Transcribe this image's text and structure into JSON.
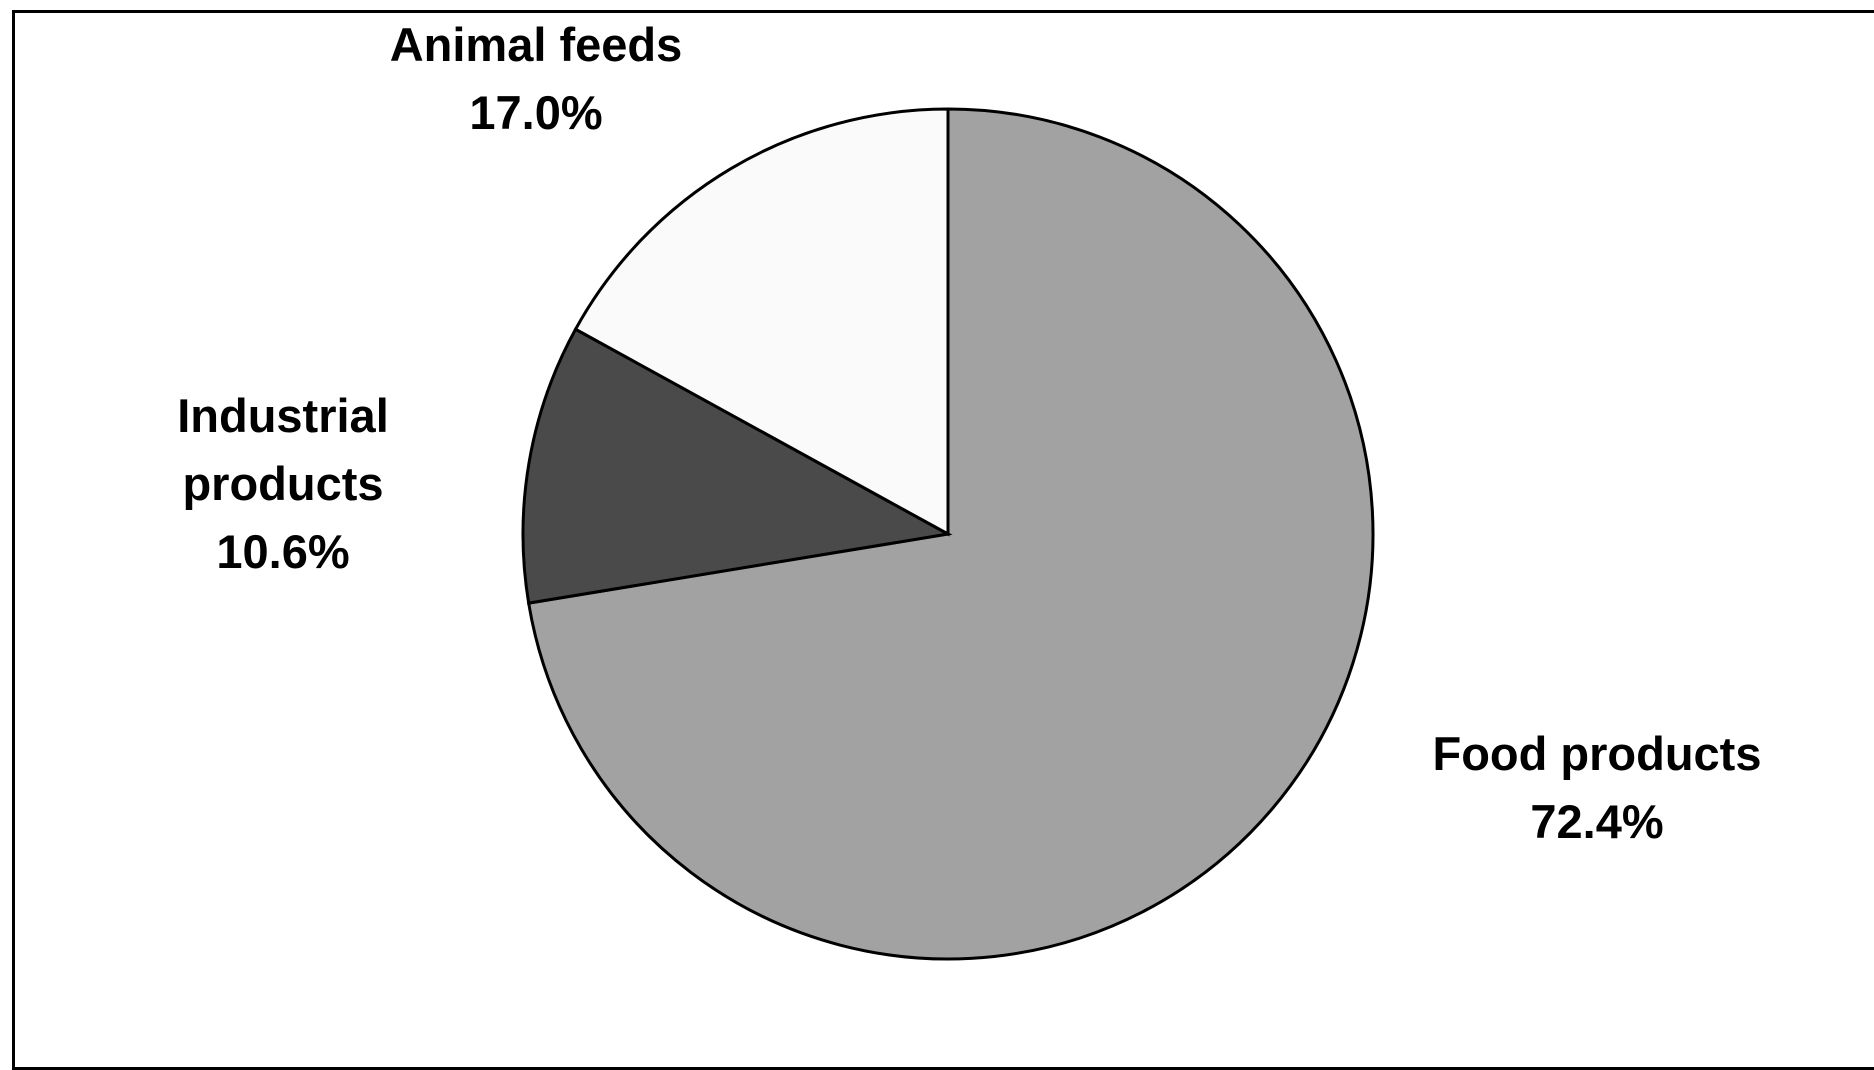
{
  "chart_data": {
    "type": "pie",
    "title": "",
    "slices": [
      {
        "label": [
          "Food products",
          "72.4%"
        ],
        "value": 72.4,
        "color": "#a2a2a2"
      },
      {
        "label": [
          "Industrial",
          "products",
          "10.6%"
        ],
        "value": 10.6,
        "color": "#4a4a4a"
      },
      {
        "label": [
          "Animal feeds",
          "17.0%"
        ],
        "value": 17.0,
        "color": "#fafafa"
      }
    ],
    "start_angle": "12 o'clock",
    "direction": "clockwise",
    "legend": "none"
  }
}
